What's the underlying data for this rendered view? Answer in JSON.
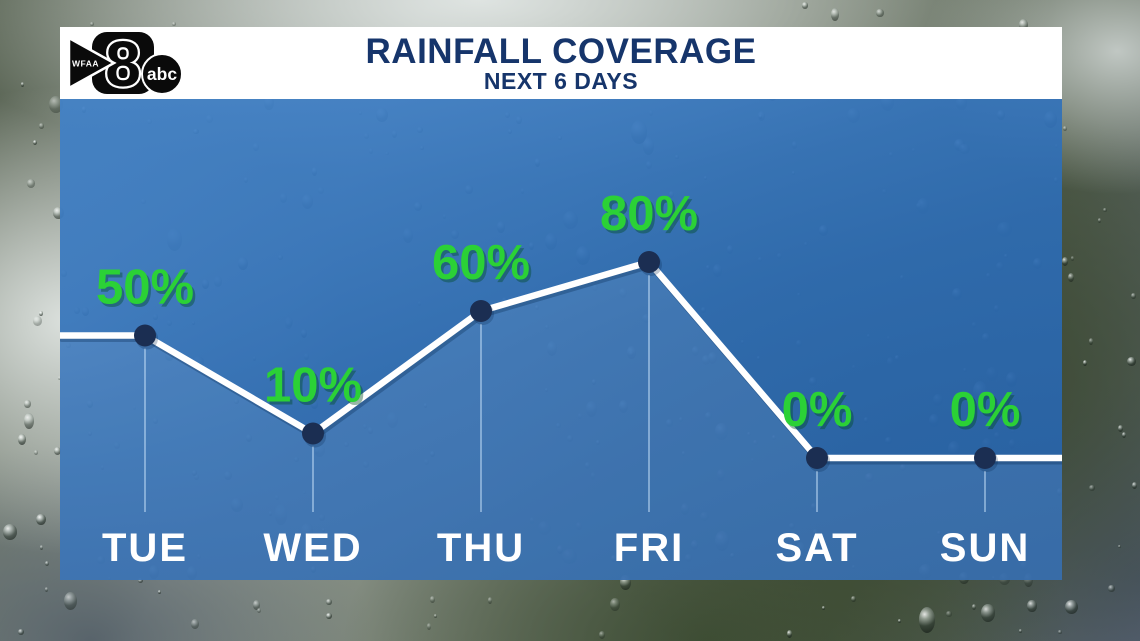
{
  "header": {
    "logo": {
      "station": "WFAA",
      "channel": "8",
      "network": "abc"
    }
  },
  "chart_data": {
    "type": "line",
    "title": "RAINFALL COVERAGE",
    "subtitle": "NEXT 6 DAYS",
    "categories": [
      "TUE",
      "WED",
      "THU",
      "FRI",
      "SAT",
      "SUN"
    ],
    "values": [
      50,
      10,
      60,
      80,
      0,
      0
    ],
    "unit": "%",
    "value_labels": [
      "50%",
      "10%",
      "60%",
      "80%",
      "0%",
      "0%"
    ],
    "ylim": [
      0,
      100
    ],
    "grid": false,
    "legend": false,
    "colors": {
      "panel_blue": "#2f6bb2",
      "line_white": "#ffffff",
      "marker_navy": "#1b2e52",
      "value_label_green": "#2bd136",
      "category_label_white": "#ffffff",
      "title_navy": "#16356b",
      "area_fill": "rgba(255,255,255,0.08)",
      "dropline": "rgba(200,225,250,0.5)"
    }
  }
}
